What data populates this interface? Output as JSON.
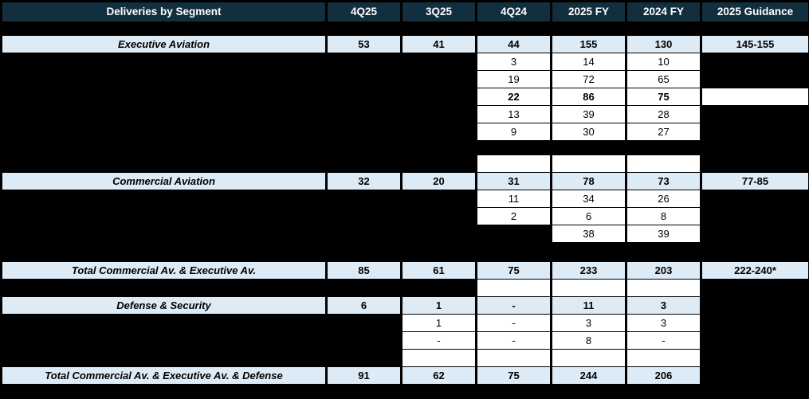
{
  "header": [
    "Deliveries by Segment",
    "4Q25",
    "3Q25",
    "4Q24",
    "2025 FY",
    "2024 FY",
    "2025 Guidance"
  ],
  "sections": {
    "executive": {
      "label": "Executive Aviation",
      "q425": "53",
      "q325": "41",
      "q424": "44",
      "fy25": "155",
      "fy24": "130",
      "guidance": "145-155",
      "breakdown": [
        {
          "q424": "3",
          "fy25": "14",
          "fy24": "10"
        },
        {
          "q424": "19",
          "fy25": "72",
          "fy24": "65"
        },
        {
          "q424": "22",
          "fy25": "86",
          "fy24": "75"
        },
        {
          "q424": "13",
          "fy25": "39",
          "fy24": "28"
        },
        {
          "q424": "9",
          "fy25": "30",
          "fy24": "27"
        }
      ]
    },
    "commercial": {
      "label": "Commercial Aviation",
      "q425": "32",
      "q325": "20",
      "q424": "31",
      "fy25": "78",
      "fy24": "73",
      "guidance": "77-85",
      "breakdown": [
        {
          "q424": "11",
          "fy25": "34",
          "fy24": "26"
        },
        {
          "q424": "2",
          "fy25": "6",
          "fy24": "8"
        },
        {
          "fy25": "38",
          "fy24": "39"
        }
      ]
    },
    "total_commercial_executive": {
      "label": "Total Commercial Av. & Executive Av.",
      "q425": "85",
      "q325": "61",
      "q424": "75",
      "fy25": "233",
      "fy24": "203",
      "guidance": "222-240*"
    },
    "defense": {
      "label": "Defense & Security",
      "q425": "6",
      "q325": "1",
      "q424": "-",
      "fy25": "11",
      "fy24": "3",
      "breakdown": [
        {
          "q325": "1",
          "q424": "-",
          "fy25": "3",
          "fy24": "3"
        },
        {
          "q325": "-",
          "q424": "-",
          "fy25": "8",
          "fy24": "-"
        }
      ]
    },
    "total_all": {
      "label": "Total Commercial Av. & Executive Av. & Defense",
      "q425": "91",
      "q325": "62",
      "q424": "75",
      "fy25": "244",
      "fy24": "206"
    }
  },
  "colors": {
    "header_bg": "#112f3e",
    "header_text": "#ffffff",
    "highlight_row_bg": "#ddebf7",
    "cell_bg": "#ffffff",
    "background": "#000000"
  }
}
